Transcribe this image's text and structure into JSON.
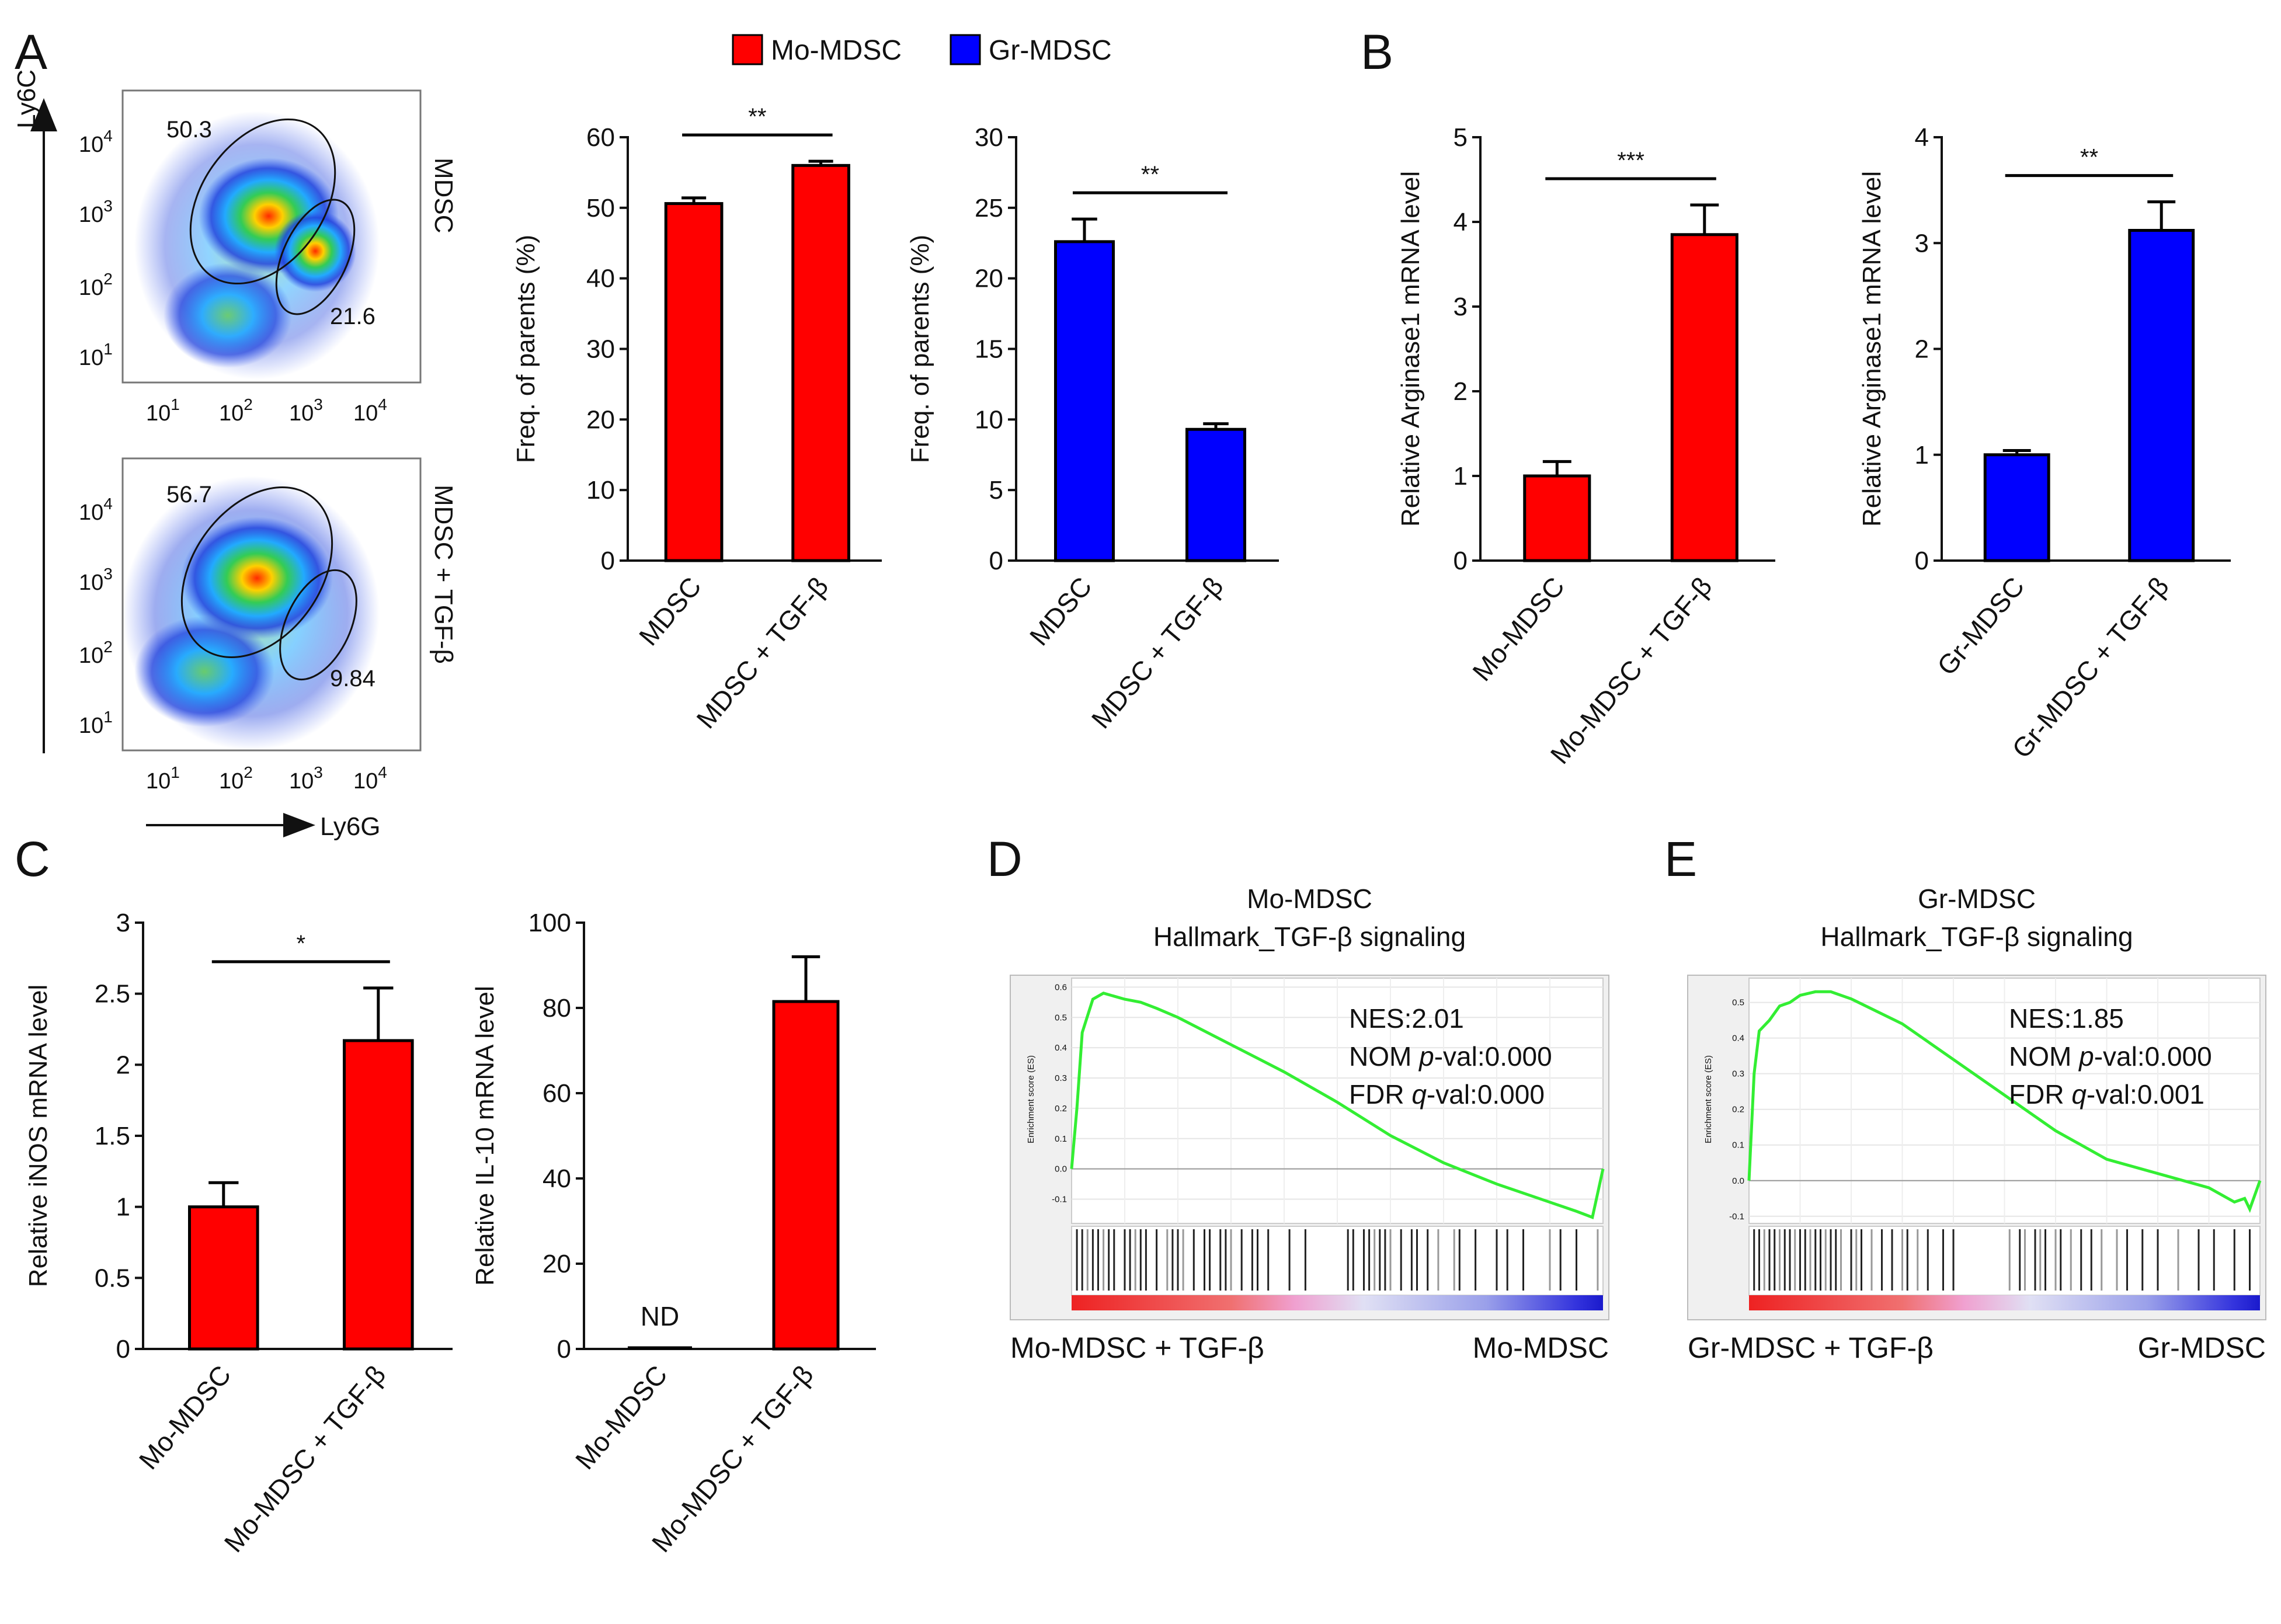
{
  "panel_labels": {
    "A": "A",
    "B": "B",
    "C": "C",
    "D": "D",
    "E": "E"
  },
  "colors": {
    "mo": "#ff0000",
    "gr": "#0000ff",
    "gsea_line": "#33ee33",
    "bar_stroke": "#000000"
  },
  "legend": {
    "mo": "Mo-MDSC",
    "gr": "Gr-MDSC"
  },
  "flow": {
    "y_axis": "Ly6C",
    "x_axis": "Ly6G",
    "ticks": {
      "t1": "10",
      "t2": "10",
      "t3": "10",
      "t4": "10",
      "e1": "1",
      "e2": "2",
      "e3": "3",
      "e4": "4"
    },
    "top": {
      "condition": "MDSC",
      "gate_upper": "50.3",
      "gate_lower": "21.6"
    },
    "bottom": {
      "condition": "MDSC + TGF-β",
      "gate_upper": "56.7",
      "gate_lower": "9.84"
    }
  },
  "chart_data": [
    {
      "id": "A-mo",
      "type": "bar",
      "categories": [
        "MDSC",
        "MDSC + TGF-β"
      ],
      "values": [
        50.6,
        56.0
      ],
      "errors": [
        0.8,
        0.6
      ],
      "ylabel": "Freq. of parents (%)",
      "ylim": [
        0,
        60
      ],
      "yticks": [
        0,
        10,
        20,
        30,
        40,
        50,
        60
      ],
      "series_color": "mo",
      "significance": "**"
    },
    {
      "id": "A-gr",
      "type": "bar",
      "categories": [
        "MDSC",
        "MDSC + TGF-β"
      ],
      "values": [
        22.6,
        9.3
      ],
      "errors": [
        1.6,
        0.4
      ],
      "ylabel": "Freq. of parents (%)",
      "ylim": [
        0,
        30
      ],
      "yticks": [
        0,
        5,
        10,
        15,
        20,
        25,
        30
      ],
      "series_color": "gr",
      "significance": "**"
    },
    {
      "id": "B-mo",
      "type": "bar",
      "categories": [
        "Mo-MDSC",
        "Mo-MDSC + TGF-β"
      ],
      "values": [
        1.0,
        3.85
      ],
      "errors": [
        0.17,
        0.35
      ],
      "ylabel": "Relative Arginase1 mRNA level",
      "ylim": [
        0,
        5
      ],
      "yticks": [
        0,
        1,
        2,
        3,
        4,
        5
      ],
      "series_color": "mo",
      "significance": "***"
    },
    {
      "id": "B-gr",
      "type": "bar",
      "categories": [
        "Gr-MDSC",
        "Gr-MDSC + TGF-β"
      ],
      "values": [
        1.0,
        3.12
      ],
      "errors": [
        0.04,
        0.27
      ],
      "ylabel": "Relative Arginase1 mRNA level",
      "ylim": [
        0,
        4
      ],
      "yticks": [
        0,
        1,
        2,
        3,
        4
      ],
      "series_color": "gr",
      "significance": "**"
    },
    {
      "id": "C-inos",
      "type": "bar",
      "categories": [
        "Mo-MDSC",
        "Mo-MDSC + TGF-β"
      ],
      "values": [
        1.0,
        2.17
      ],
      "errors": [
        0.17,
        0.37
      ],
      "ylabel": "Relative iNOS mRNA level",
      "ylim": [
        0,
        3
      ],
      "yticks": [
        "0",
        "0.5",
        "1",
        "1.5",
        "2",
        "2.5",
        "3"
      ],
      "series_color": "mo",
      "significance": "*"
    },
    {
      "id": "C-il10",
      "type": "bar",
      "categories": [
        "Mo-MDSC",
        "Mo-MDSC + TGF-β"
      ],
      "values": [
        0,
        81.5
      ],
      "errors": [
        0,
        10.5
      ],
      "ylabel": "Relative IL-10 mRNA level",
      "ylim": [
        0,
        100
      ],
      "yticks": [
        0,
        20,
        40,
        60,
        80,
        100
      ],
      "series_color": "mo",
      "annotations": {
        "first_bar": "ND"
      }
    },
    {
      "id": "D",
      "type": "line",
      "title_line1": "Mo-MDSC",
      "title_line2": "Hallmark_TGF-β signaling",
      "ylabel": "Enrichment score (ES)",
      "yticks": [
        "0.6",
        "0.5",
        "0.4",
        "0.3",
        "0.2",
        "0.1",
        "0.0",
        "-0.1"
      ],
      "ylim": [
        -0.18,
        0.62
      ],
      "x": [
        0,
        1,
        2,
        4,
        6,
        8,
        10,
        13,
        16,
        20,
        30,
        40,
        50,
        60,
        70,
        80,
        90,
        95,
        98,
        100
      ],
      "y": [
        0.0,
        0.2,
        0.45,
        0.56,
        0.58,
        0.57,
        0.56,
        0.55,
        0.53,
        0.5,
        0.41,
        0.32,
        0.22,
        0.11,
        0.02,
        -0.05,
        -0.11,
        -0.14,
        -0.16,
        0.0
      ],
      "stats": {
        "nes": "NES:2.01",
        "nom_label": "NOM ",
        "nom_italic": "p",
        "nom_value": "-val:0.000",
        "fdr_label": "FDR ",
        "fdr_italic": "q",
        "fdr_value": "-val:0.000"
      },
      "left_label": "Mo-MDSC + TGF-β",
      "right_label": "Mo-MDSC",
      "hits": [
        1,
        2,
        3,
        4,
        5,
        6,
        7,
        8,
        10,
        11,
        12,
        13,
        14,
        16,
        18,
        19,
        20,
        21,
        23,
        25,
        26,
        28,
        29,
        30,
        32,
        34,
        35,
        37,
        41,
        44,
        52,
        53,
        55,
        56,
        57,
        58,
        59,
        60,
        62,
        64,
        65,
        67,
        69,
        72,
        73,
        76,
        80,
        82,
        85,
        90,
        92,
        95,
        99
      ]
    },
    {
      "id": "E",
      "type": "line",
      "title_line1": "Gr-MDSC",
      "title_line2": "Hallmark_TGF-β signaling",
      "ylabel": "Enrichment score (ES)",
      "yticks": [
        "0.5",
        "0.4",
        "0.3",
        "0.2",
        "0.1",
        "0.0",
        "-0.1"
      ],
      "ylim": [
        -0.12,
        0.56
      ],
      "x": [
        0,
        1,
        2,
        4,
        6,
        8,
        10,
        13,
        16,
        20,
        30,
        40,
        50,
        60,
        70,
        80,
        90,
        95,
        97,
        98,
        99,
        100
      ],
      "y": [
        0.0,
        0.3,
        0.42,
        0.45,
        0.49,
        0.5,
        0.52,
        0.53,
        0.53,
        0.51,
        0.44,
        0.34,
        0.24,
        0.14,
        0.06,
        0.02,
        -0.02,
        -0.06,
        -0.05,
        -0.08,
        -0.04,
        0.0
      ],
      "stats": {
        "nes": "NES:1.85",
        "nom_label": "NOM ",
        "nom_italic": "p",
        "nom_value": "-val:0.000",
        "fdr_label": "FDR ",
        "fdr_italic": "q",
        "fdr_value": "-val:0.001"
      },
      "left_label": "Gr-MDSC + TGF-β",
      "right_label": "Gr-MDSC",
      "hits": [
        1,
        2,
        3,
        4,
        5,
        6,
        7,
        8,
        9,
        10,
        11,
        12,
        13,
        14,
        15,
        16,
        17,
        18,
        20,
        21,
        22,
        24,
        26,
        28,
        30,
        31,
        33,
        35,
        38,
        40,
        51,
        53,
        54,
        56,
        57,
        58,
        60,
        61,
        63,
        65,
        67,
        69,
        72,
        74,
        77,
        80,
        84,
        88,
        91,
        95,
        98
      ]
    }
  ]
}
